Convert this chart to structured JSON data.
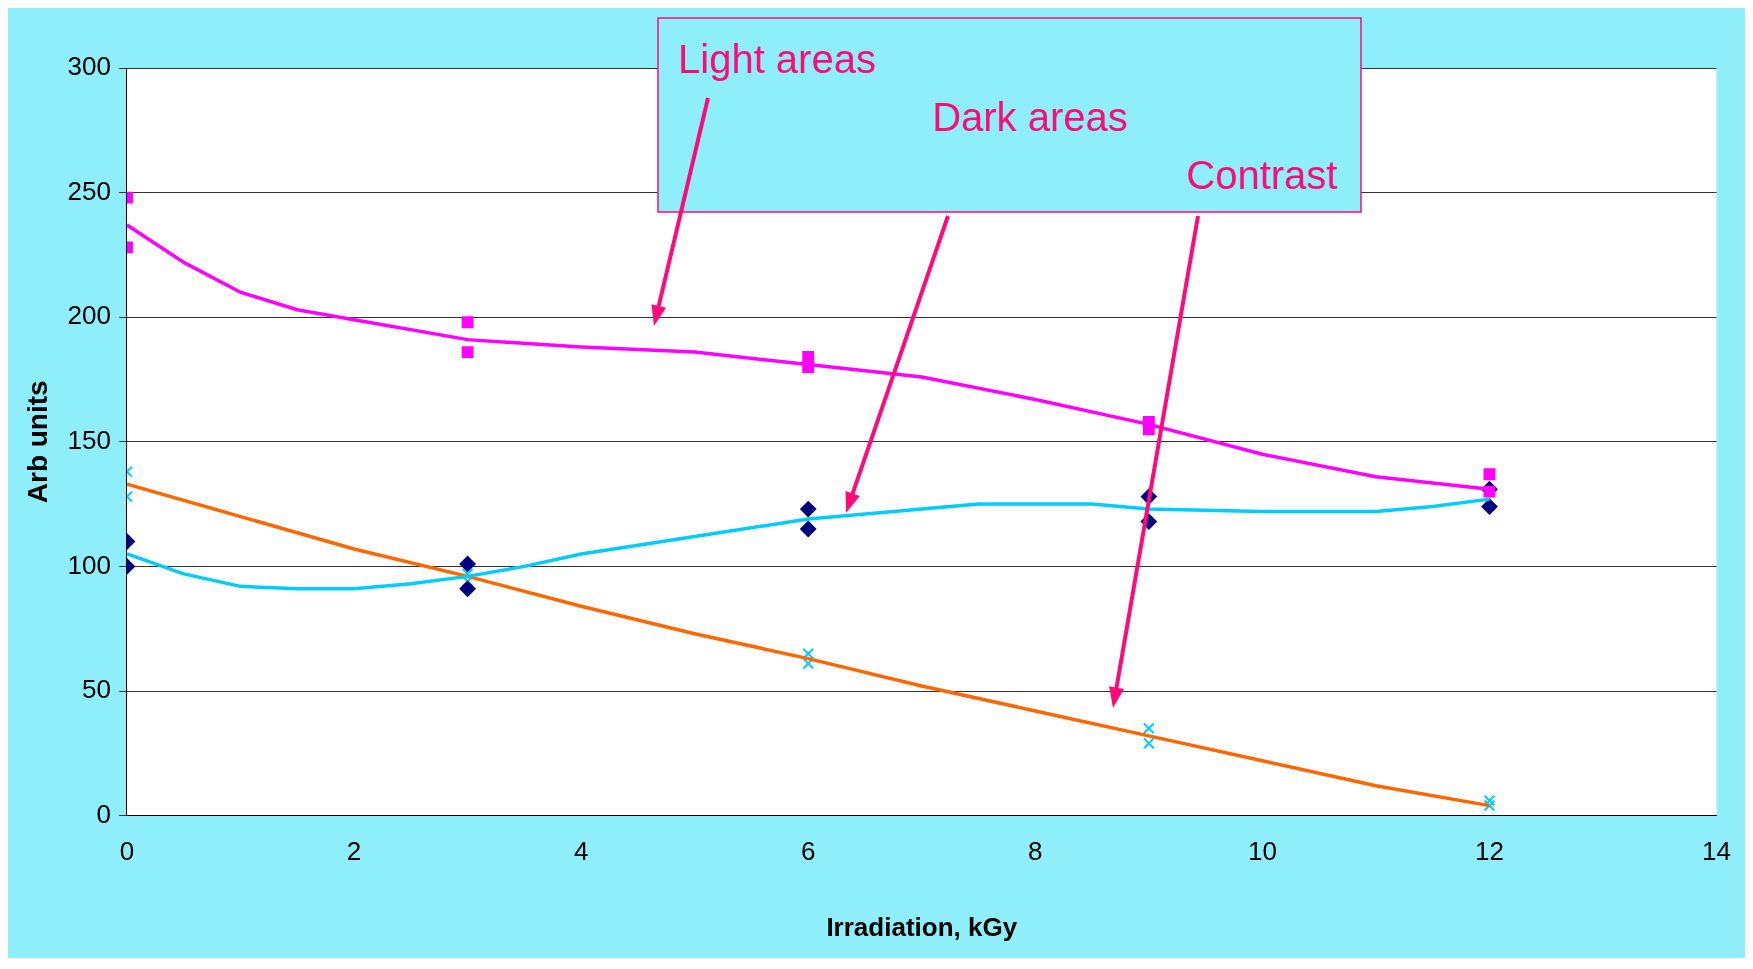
{
  "chart_data": {
    "type": "scatter",
    "xlabel": "Irradiation, kGy",
    "ylabel": "Arb units",
    "xlim": [
      0,
      14
    ],
    "xticks": [
      0,
      2,
      4,
      6,
      8,
      10,
      12,
      14
    ],
    "ylim": [
      0,
      300
    ],
    "yticks": [
      0,
      50,
      100,
      150,
      200,
      250,
      300
    ],
    "grid": "y",
    "legend": false,
    "series": [
      {
        "type": "line",
        "color": "#ff00ff",
        "marker": "none",
        "x": [
          0,
          0.5,
          1,
          1.5,
          2,
          3,
          4,
          5,
          6,
          7,
          8,
          9,
          10,
          11,
          12
        ],
        "values": [
          237,
          222,
          210,
          203,
          199,
          191,
          188,
          186,
          181,
          176,
          167,
          157,
          145,
          136,
          131
        ]
      },
      {
        "type": "line",
        "color": "#00ccff",
        "marker": "none",
        "x": [
          0,
          0.5,
          1,
          1.5,
          2,
          2.5,
          3,
          3.5,
          4,
          5,
          6,
          7,
          7.5,
          8.5,
          9,
          10,
          11,
          11.5,
          12
        ],
        "values": [
          105,
          97,
          92,
          91,
          91,
          93,
          96,
          100,
          105,
          112,
          119,
          123,
          125,
          125,
          123,
          122,
          122,
          124,
          127
        ]
      },
      {
        "type": "line",
        "color": "#ff6600",
        "marker": "none",
        "x": [
          0,
          1,
          2,
          3,
          4,
          5,
          6,
          7,
          8,
          9,
          10,
          11,
          12
        ],
        "values": [
          133,
          120,
          107,
          96,
          84,
          73,
          63,
          52,
          42,
          32,
          22,
          12,
          4
        ]
      },
      {
        "type": "scatter",
        "color": "#ff00ff",
        "marker": "square",
        "x": [
          0,
          0,
          3,
          3,
          6,
          6,
          9,
          9,
          12,
          12
        ],
        "values": [
          248,
          228,
          198,
          186,
          184,
          180,
          158,
          155,
          137,
          130
        ]
      },
      {
        "type": "scatter",
        "color": "#000080",
        "marker": "diamond",
        "x": [
          0,
          0,
          3,
          3,
          6,
          6,
          9,
          9,
          12,
          12
        ],
        "values": [
          110,
          100,
          101,
          91,
          123,
          115,
          128,
          118,
          131,
          124
        ]
      },
      {
        "type": "scatter",
        "color": "#00ccff",
        "marker": "cross",
        "x": [
          0,
          0,
          3,
          3,
          6,
          6,
          9,
          9,
          12,
          12
        ],
        "values": [
          138,
          128,
          97,
          94,
          65,
          61,
          35,
          29,
          6,
          4
        ]
      }
    ],
    "annotations": [
      "Light areas",
      "Dark areas",
      "Contrast"
    ]
  }
}
